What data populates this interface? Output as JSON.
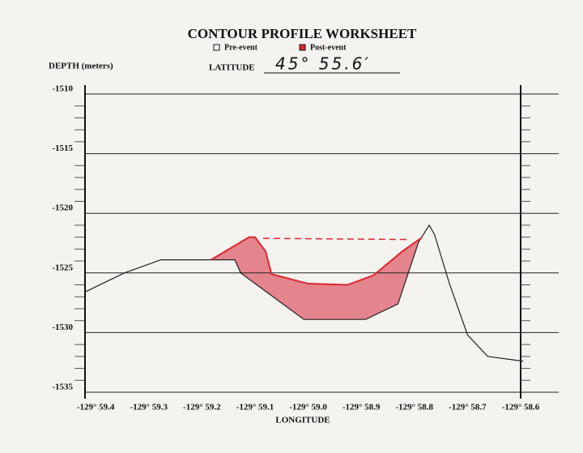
{
  "chart_data": {
    "type": "line",
    "title": "CONTOUR PROFILE WORKSHEET",
    "y_label": "DEPTH  (meters)",
    "x_label": "LONGITUDE",
    "latitude_label": "LATITUDE",
    "latitude_value": "45° 55.6′",
    "xlim": [
      59.42,
      58.6
    ],
    "ylim": [
      -1535,
      -1510
    ],
    "xticks": [
      {
        "value": 59.4,
        "label": "-129° 59.4"
      },
      {
        "value": 59.3,
        "label": "-129° 59.3"
      },
      {
        "value": 59.2,
        "label": "-129° 59.2"
      },
      {
        "value": 59.1,
        "label": "-129° 59.1"
      },
      {
        "value": 59.0,
        "label": "-129° 59.0"
      },
      {
        "value": 58.9,
        "label": "-129° 58.9"
      },
      {
        "value": 58.8,
        "label": "-129° 58.8"
      },
      {
        "value": 58.7,
        "label": "-129° 58.7"
      },
      {
        "value": 58.6,
        "label": "-129° 58.6"
      }
    ],
    "yticks": [
      -1510,
      -1515,
      -1520,
      -1525,
      -1530,
      -1535
    ],
    "yminorticks": [
      -1511,
      -1512,
      -1513,
      -1514,
      -1516,
      -1517,
      -1518,
      -1519,
      -1521,
      -1522,
      -1523,
      -1524,
      -1526,
      -1527,
      -1528,
      -1529,
      -1531,
      -1532,
      -1533,
      -1534
    ],
    "grid": true,
    "series": [
      {
        "name": "Pre-event",
        "color": "#222222",
        "x": [
          59.42,
          59.346,
          59.277,
          59.138,
          59.127,
          59.008,
          58.892,
          58.831,
          58.792,
          58.772,
          58.762,
          58.734,
          58.7,
          58.662,
          58.595
        ],
        "values": [
          -1526.6,
          -1525.0,
          -1523.9,
          -1523.9,
          -1525.0,
          -1528.9,
          -1528.9,
          -1527.6,
          -1522.4,
          -1521.0,
          -1521.8,
          -1525.9,
          -1530.2,
          -1532.0,
          -1532.4
        ]
      },
      {
        "name": "Post-event",
        "color": "#d9282f",
        "x": [
          59.183,
          59.111,
          59.1,
          59.08,
          59.069,
          59.0,
          58.926,
          58.877,
          58.823,
          58.785
        ],
        "values": [
          -1523.9,
          -1522.0,
          -1522.0,
          -1523.2,
          -1525.1,
          -1525.9,
          -1526.0,
          -1525.2,
          -1523.2,
          -1522.0
        ]
      }
    ],
    "dashed_line": {
      "color": "#d9282f",
      "x": [
        59.085,
        58.808
      ],
      "values": [
        -1522.1,
        -1522.2
      ]
    }
  }
}
